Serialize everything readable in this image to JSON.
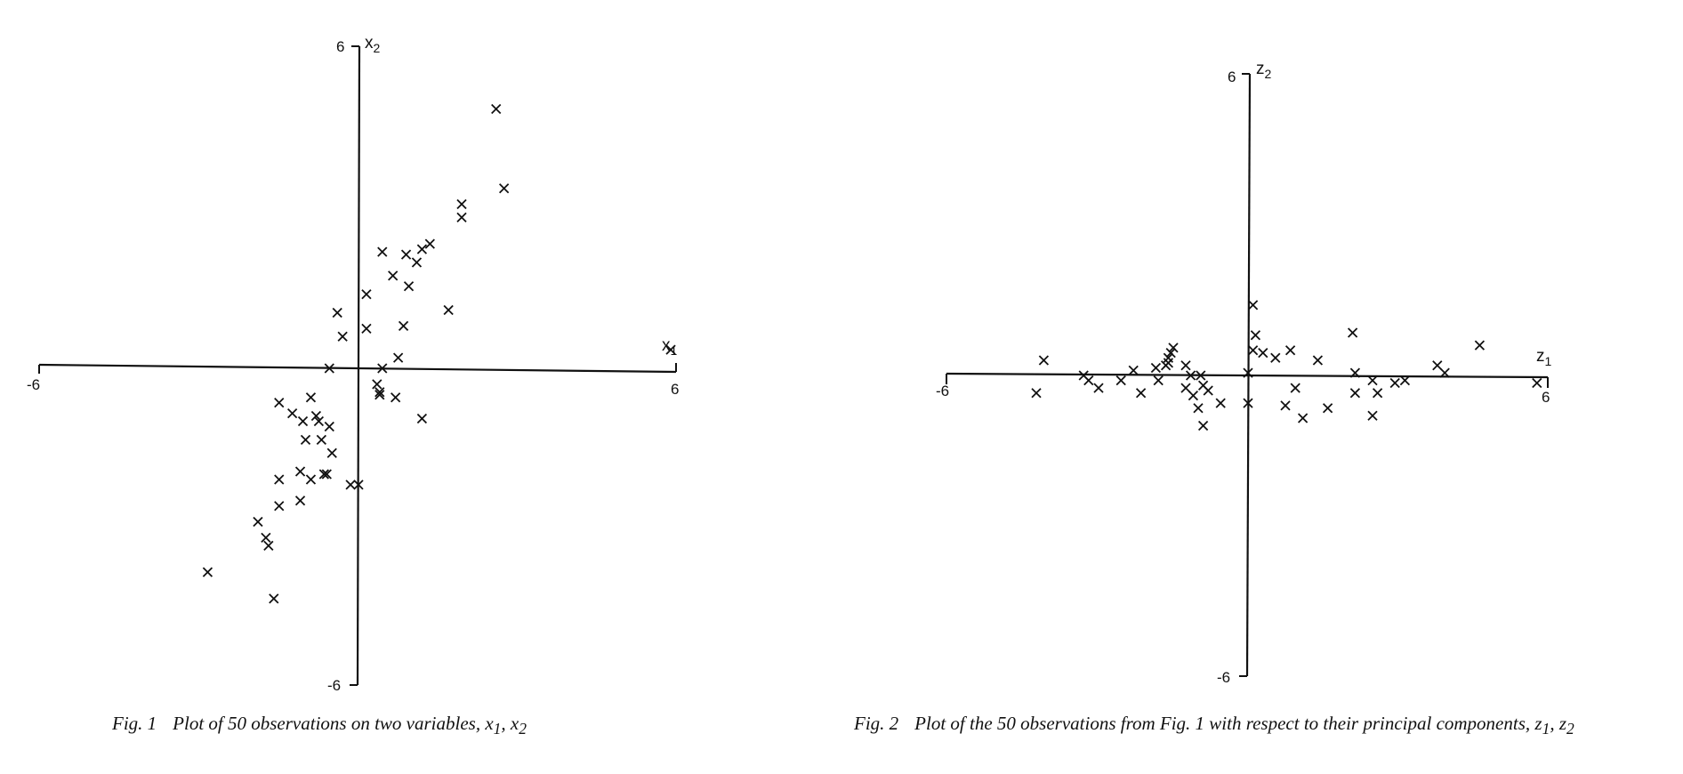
{
  "chart_data": [
    {
      "type": "scatter",
      "marker": "x",
      "xlabel": "x",
      "xlabel_sub": "1",
      "ylabel": "x",
      "ylabel_sub": "2",
      "xlim": [
        -6,
        6
      ],
      "ylim": [
        -6,
        6
      ],
      "tick_labels": {
        "x_min": "-6",
        "x_max": "6",
        "y_min": "-6",
        "y_max": "6"
      },
      "grid": false,
      "caption": {
        "fig": "Fig. 1",
        "text": "Plot of 50 observations on two variables, ",
        "var1": "x",
        "var1_sub": "1",
        "sep": ", ",
        "var2": "x",
        "var2_sub": "2"
      },
      "points": [
        [
          2.6,
          4.9
        ],
        [
          2.75,
          3.4
        ],
        [
          1.95,
          3.1
        ],
        [
          1.95,
          2.85
        ],
        [
          1.35,
          2.35
        ],
        [
          1.2,
          2.25
        ],
        [
          0.9,
          2.15
        ],
        [
          0.45,
          2.2
        ],
        [
          1.1,
          2.0
        ],
        [
          0.65,
          1.75
        ],
        [
          0.95,
          1.55
        ],
        [
          0.15,
          1.4
        ],
        [
          1.7,
          1.1
        ],
        [
          -0.4,
          1.05
        ],
        [
          0.15,
          0.75
        ],
        [
          0.85,
          0.8
        ],
        [
          -0.3,
          0.6
        ],
        [
          0.75,
          0.2
        ],
        [
          -0.55,
          0.0
        ],
        [
          0.45,
          0.0
        ],
        [
          0.35,
          -0.3
        ],
        [
          0.4,
          -0.45
        ],
        [
          0.4,
          -0.5
        ],
        [
          0.7,
          -0.55
        ],
        [
          -1.5,
          -0.65
        ],
        [
          -0.9,
          -0.55
        ],
        [
          -1.25,
          -0.85
        ],
        [
          -0.8,
          -0.9
        ],
        [
          -1.05,
          -1.0
        ],
        [
          -0.75,
          -1.0
        ],
        [
          -0.55,
          -1.1
        ],
        [
          -1.0,
          -1.35
        ],
        [
          -0.7,
          -1.35
        ],
        [
          1.2,
          -0.95
        ],
        [
          -0.5,
          -1.6
        ],
        [
          -1.1,
          -1.95
        ],
        [
          -0.65,
          -2.0
        ],
        [
          -0.6,
          -2.0
        ],
        [
          -0.9,
          -2.1
        ],
        [
          -1.5,
          -2.1
        ],
        [
          -0.15,
          -2.2
        ],
        [
          0.0,
          -2.2
        ],
        [
          -1.1,
          -2.5
        ],
        [
          -1.5,
          -2.6
        ],
        [
          -1.9,
          -2.9
        ],
        [
          -1.75,
          -3.2
        ],
        [
          -1.7,
          -3.35
        ],
        [
          -2.85,
          -3.85
        ],
        [
          -1.6,
          -4.35
        ],
        [
          5.9,
          0.35
        ]
      ]
    },
    {
      "type": "scatter",
      "marker": "x",
      "xlabel": "z",
      "xlabel_sub": "1",
      "ylabel": "z",
      "ylabel_sub": "2",
      "xlim": [
        -6,
        6
      ],
      "ylim": [
        -6,
        6
      ],
      "tick_labels": {
        "x_min": "-6",
        "x_max": "6",
        "y_min": "-6",
        "y_max": "6"
      },
      "grid": false,
      "caption": {
        "fig": "Fig. 2",
        "text": "Plot of the 50 observations from Fig. 1 with respect to their principal components, ",
        "var1": "z",
        "var1_sub": "1",
        "sep": ", ",
        "var2": "z",
        "var2_sub": "2"
      },
      "points": [
        [
          -4.1,
          0.3
        ],
        [
          -4.25,
          -0.35
        ],
        [
          -3.3,
          0.0
        ],
        [
          -3.2,
          -0.1
        ],
        [
          -3.0,
          -0.25
        ],
        [
          -2.55,
          -0.1
        ],
        [
          -2.3,
          0.1
        ],
        [
          -2.15,
          -0.35
        ],
        [
          -1.85,
          0.15
        ],
        [
          -1.8,
          -0.1
        ],
        [
          -1.65,
          0.2
        ],
        [
          -1.6,
          0.25
        ],
        [
          -1.6,
          0.35
        ],
        [
          -1.5,
          0.55
        ],
        [
          -1.55,
          0.45
        ],
        [
          -1.25,
          0.2
        ],
        [
          -1.25,
          -0.25
        ],
        [
          -1.15,
          0.0
        ],
        [
          -1.1,
          -0.4
        ],
        [
          -0.95,
          0.0
        ],
        [
          -0.9,
          -0.2
        ],
        [
          -0.8,
          -0.3
        ],
        [
          -0.55,
          -0.55
        ],
        [
          -1.0,
          -0.65
        ],
        [
          -0.9,
          -1.0
        ],
        [
          0.1,
          1.4
        ],
        [
          0.15,
          0.8
        ],
        [
          0.1,
          0.5
        ],
        [
          0.3,
          0.45
        ],
        [
          0.55,
          0.35
        ],
        [
          0.85,
          0.5
        ],
        [
          1.4,
          0.3
        ],
        [
          0.0,
          -0.55
        ],
        [
          0.95,
          -0.25
        ],
        [
          0.75,
          -0.6
        ],
        [
          1.1,
          -0.85
        ],
        [
          1.6,
          -0.65
        ],
        [
          2.1,
          0.85
        ],
        [
          2.15,
          0.05
        ],
        [
          2.15,
          -0.35
        ],
        [
          2.5,
          -0.1
        ],
        [
          2.6,
          -0.35
        ],
        [
          2.5,
          -0.8
        ],
        [
          2.95,
          -0.15
        ],
        [
          3.15,
          -0.1
        ],
        [
          3.8,
          0.2
        ],
        [
          3.95,
          0.05
        ],
        [
          4.65,
          0.6
        ],
        [
          5.8,
          -0.15
        ],
        [
          0.0,
          0.05
        ]
      ]
    }
  ]
}
